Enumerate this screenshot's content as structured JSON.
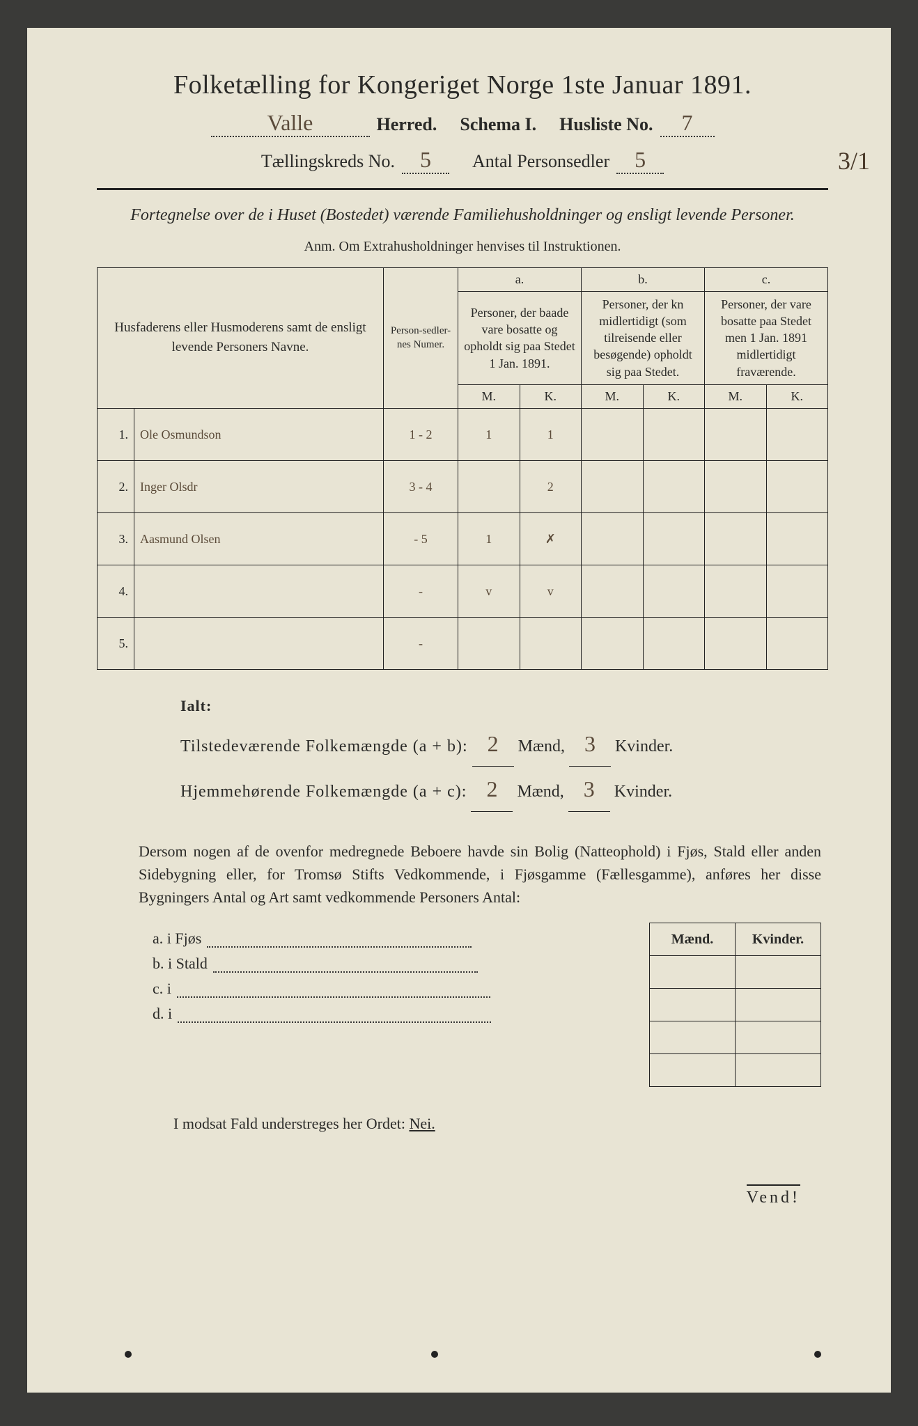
{
  "title": "Folketælling for Kongeriget Norge 1ste Januar 1891.",
  "header": {
    "herred_value": "Valle",
    "herred_label": "Herred.",
    "schema_label": "Schema I.",
    "husliste_label": "Husliste No.",
    "husliste_value": "7",
    "margin_note": "3/1",
    "kreds_label": "Tællingskreds No.",
    "kreds_value": "5",
    "antal_label": "Antal Personsedler",
    "antal_value": "5"
  },
  "subtitle": "Fortegnelse over de i Huset (Bostedet) værende Familiehusholdninger og ensligt levende Personer.",
  "anm": "Anm.  Om Extrahusholdninger henvises til Instruktionen.",
  "columns": {
    "name_header": "Husfaderens eller Husmoderens samt de ensligt levende Personers Navne.",
    "numer_header": "Person-sedler-nes Numer.",
    "a_label": "a.",
    "a_desc": "Personer, der baade vare bosatte og opholdt sig paa Stedet 1 Jan. 1891.",
    "b_label": "b.",
    "b_desc": "Personer, der kn midlertidigt (som tilreisende eller besøgende) opholdt sig paa Stedet.",
    "c_label": "c.",
    "c_desc": "Personer, der vare bosatte paa Stedet men 1 Jan. 1891 midlertidigt fraværende.",
    "m": "M.",
    "k": "K."
  },
  "rows": [
    {
      "n": "1.",
      "name": "Ole Osmundson",
      "numer": "1 - 2",
      "am": "1",
      "ak": "1",
      "bm": "",
      "bk": "",
      "cm": "",
      "ck": ""
    },
    {
      "n": "2.",
      "name": "Inger Olsdr",
      "numer": "3 - 4",
      "am": "",
      "ak": "2",
      "bm": "",
      "bk": "",
      "cm": "",
      "ck": ""
    },
    {
      "n": "3.",
      "name": "Aasmund Olsen",
      "numer": "- 5",
      "am": "1",
      "ak": "✗",
      "bm": "",
      "bk": "",
      "cm": "",
      "ck": ""
    },
    {
      "n": "4.",
      "name": "",
      "numer": "-",
      "am": "v",
      "ak": "v",
      "bm": "",
      "bk": "",
      "cm": "",
      "ck": ""
    },
    {
      "n": "5.",
      "name": "",
      "numer": "-",
      "am": "",
      "ak": "",
      "bm": "",
      "bk": "",
      "cm": "",
      "ck": ""
    }
  ],
  "ialt": {
    "label": "Ialt:",
    "line1_pre": "Tilstedeværende Folkemængde (a + b):",
    "line2_pre": "Hjemmehørende Folkemængde (a + c):",
    "maend": "Mænd,",
    "kvinder": "Kvinder.",
    "v1m": "2",
    "v1k": "3",
    "v2m": "2",
    "v2k": "3"
  },
  "para": "Dersom nogen af de ovenfor medregnede Beboere havde sin Bolig (Natteophold) i Fjøs, Stald eller anden Sidebygning eller, for Tromsø Stifts Vedkommende, i Fjøsgamme (Fællesgamme), anføres her disse Bygningers Antal og Art samt vedkommende Personers Antal:",
  "sub": {
    "mk_m": "Mænd.",
    "mk_k": "Kvinder.",
    "a": "a.  i      Fjøs",
    "b": "b.  i      Stald",
    "c": "c.  i",
    "d": "d.  i"
  },
  "footer": "I modsat Fald understreges her Ordet:",
  "nei": "Nei.",
  "vend": "Vend!",
  "colors": {
    "paper": "#e8e4d4",
    "ink": "#2a2a28",
    "handwriting": "#5a4a38",
    "background": "#3a3a38"
  }
}
